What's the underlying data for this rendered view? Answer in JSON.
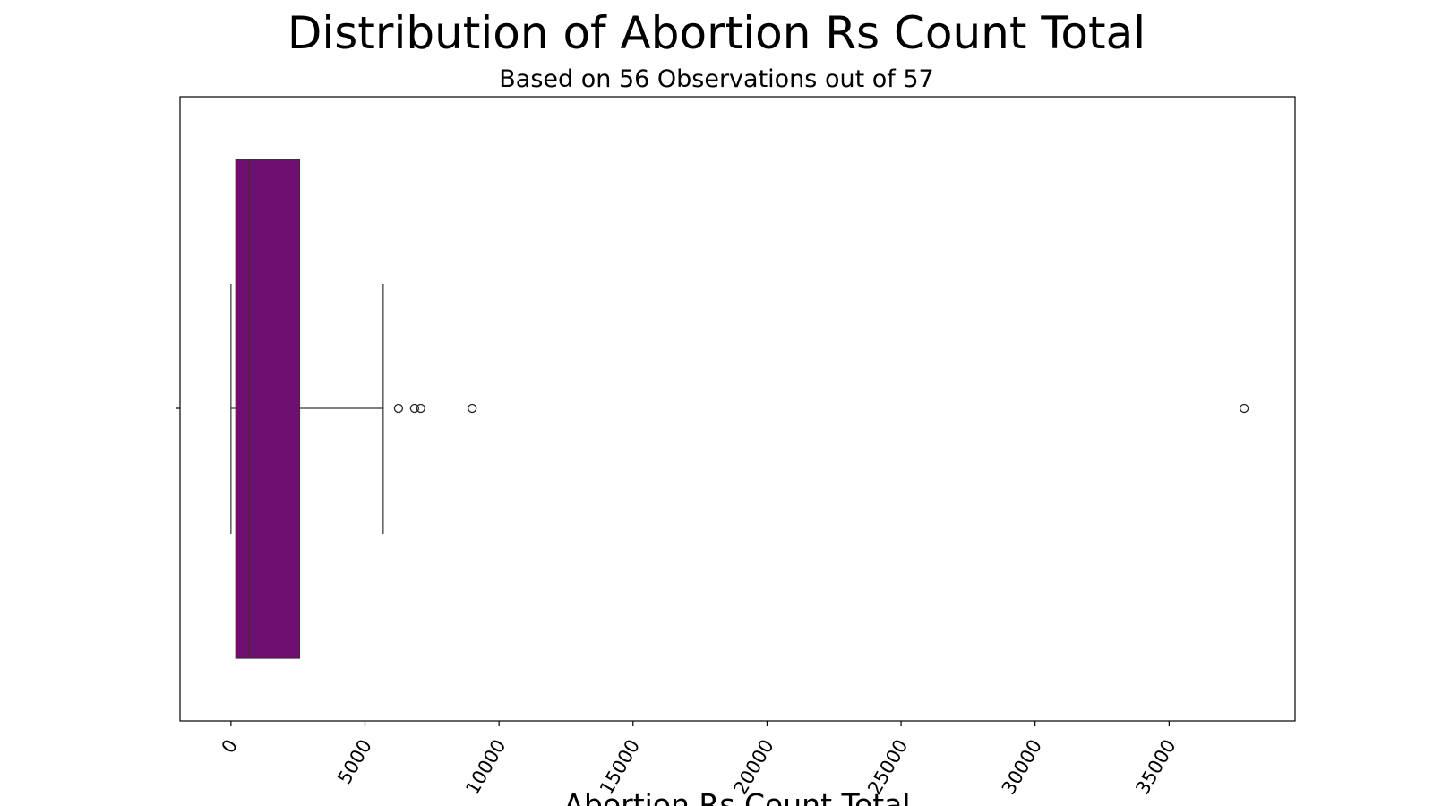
{
  "chart_data": {
    "type": "box",
    "title": "Distribution of Abortion Rs Count Total",
    "subtitle": "Based on 56 Observations out of 57",
    "xlabel": "Abortion Rs Count Total",
    "ylabel": "",
    "xlim": [
      -1900,
      39700
    ],
    "xticks": [
      0,
      5000,
      10000,
      15000,
      20000,
      25000,
      30000,
      35000
    ],
    "xtick_labels": [
      "0",
      "5000",
      "10000",
      "15000",
      "20000",
      "25000",
      "30000",
      "35000"
    ],
    "orientation": "horizontal",
    "grid": false,
    "box_color": "#6f0f6f",
    "box": {
      "whisker_low": 0,
      "q1": 180,
      "median": 680,
      "q3": 2560,
      "whisker_high": 5680
    },
    "outliers": [
      6250,
      6850,
      7080,
      9000,
      37800
    ]
  }
}
